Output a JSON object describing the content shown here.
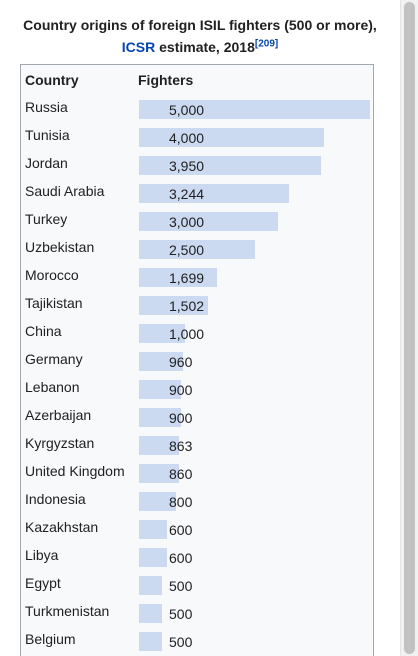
{
  "caption": {
    "prefix": "Country origins of foreign ISIL fighters (500 or more),",
    "link": "ICSR",
    "suffix": "estimate, 2018",
    "ref": "[209]"
  },
  "table": {
    "col_country": "Country",
    "col_fighters": "Fighters"
  },
  "chart_data": {
    "type": "bar",
    "title": "Country origins of foreign ISIL fighters (500 or more), ICSR estimate, 2018",
    "xlabel": "Country",
    "ylabel": "Fighters",
    "ylim": [
      0,
      5000
    ],
    "categories": [
      "Russia",
      "Tunisia",
      "Jordan",
      "Saudi Arabia",
      "Turkey",
      "Uzbekistan",
      "Morocco",
      "Tajikistan",
      "China",
      "Germany",
      "Lebanon",
      "Azerbaijan",
      "Kyrgyzstan",
      "United Kingdom",
      "Indonesia",
      "Kazakhstan",
      "Libya",
      "Egypt",
      "Turkmenistan",
      "Belgium"
    ],
    "values": [
      5000,
      4000,
      3950,
      3244,
      3000,
      2500,
      1699,
      1502,
      1000,
      960,
      900,
      900,
      863,
      860,
      800,
      600,
      600,
      500,
      500,
      500
    ],
    "labels": [
      "5,000",
      "4,000",
      "3,950",
      "3,244",
      "3,000",
      "2,500",
      "1,699",
      "1,502",
      "1,000",
      "960",
      "900",
      "900",
      "863",
      "860",
      "800",
      "600",
      "600",
      "500",
      "500",
      "500"
    ],
    "bar_color": "#ccdaf1"
  }
}
